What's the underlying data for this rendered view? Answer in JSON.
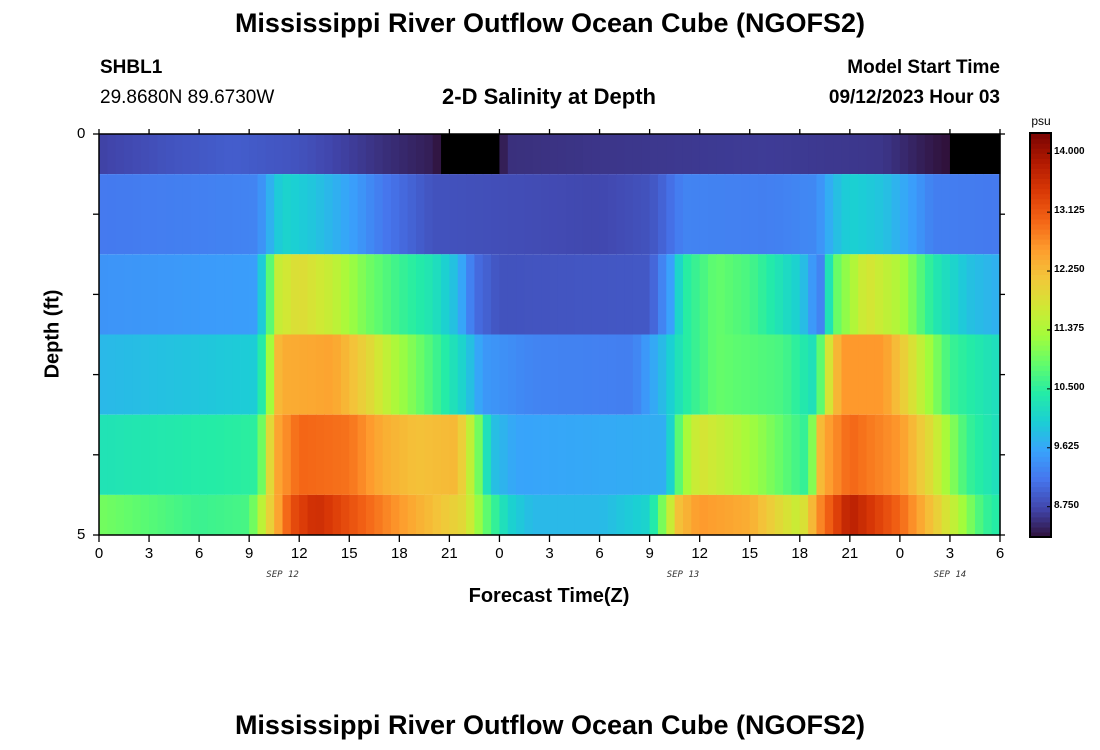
{
  "header": {
    "title": "Mississippi River Outflow Ocean Cube (NGOFS2)",
    "station_id": "SHBL1",
    "coordinates": "29.8680N  89.6730W",
    "plot_title": "2-D Salinity at Depth",
    "model_start_label": "Model Start Time",
    "model_start_value": "09/12/2023 Hour 03"
  },
  "footer": {
    "repeated_title": "Mississippi River Outflow Ocean Cube (NGOFS2)"
  },
  "colors": {
    "colormap": [
      "#30123b",
      "#4145ab",
      "#4675ed",
      "#39a2fc",
      "#1bcfd4",
      "#24eca6",
      "#61fc6c",
      "#a4fc3b",
      "#d1e834",
      "#f3c63a",
      "#fe9b2d",
      "#f36315",
      "#d93806",
      "#b11901",
      "#7a0402"
    ],
    "frame": "#000000"
  },
  "chart_data": {
    "type": "heatmap",
    "title": "2-D Salinity at Depth",
    "xlabel": "Forecast Time(Z)",
    "ylabel": "Depth (ft)",
    "x_tick_labels": [
      "0",
      "3",
      "6",
      "9",
      "12",
      "15",
      "18",
      "21",
      "0",
      "3",
      "6",
      "9",
      "12",
      "15",
      "18",
      "21",
      "0",
      "3",
      "6"
    ],
    "x_range_hours": [
      0,
      54
    ],
    "y_tick_labels": [
      "0",
      "5"
    ],
    "y_range": [
      0,
      5
    ],
    "date_labels": [
      {
        "text": "SEP 12",
        "hour": 11
      },
      {
        "text": "SEP 13",
        "hour": 35
      },
      {
        "text": "SEP 14",
        "hour": 51
      }
    ],
    "colorbar": {
      "unit": "psu",
      "min": 8.3,
      "max": 14.3,
      "tick_labels": [
        "14.000",
        "13.125",
        "12.250",
        "11.375",
        "10.500",
        "9.625",
        "8.750"
      ],
      "tick_values": [
        14.0,
        13.125,
        12.25,
        11.375,
        10.5,
        9.625,
        8.75
      ]
    },
    "layer_boundaries_ft": [
      0,
      0.5,
      1.5,
      2.5,
      3.5,
      4.5,
      5
    ],
    "layers": [
      {
        "name": "layer-1",
        "keyframes": [
          [
            0,
            8.7
          ],
          [
            4,
            8.85
          ],
          [
            8,
            8.95
          ],
          [
            12,
            8.85
          ],
          [
            17,
            8.55
          ],
          [
            20,
            8.4
          ],
          [
            22.2,
            7.8
          ],
          [
            22.7,
            7.2
          ],
          [
            23.2,
            7.8
          ],
          [
            24.5,
            8.55
          ],
          [
            30,
            8.6
          ],
          [
            40,
            8.65
          ],
          [
            47,
            8.6
          ],
          [
            50,
            8.35
          ],
          [
            54,
            8.1
          ]
        ]
      },
      {
        "name": "layer-2",
        "keyframes": [
          [
            0,
            9.2
          ],
          [
            9.5,
            9.3
          ],
          [
            10.2,
            9.7
          ],
          [
            11,
            10.1
          ],
          [
            13,
            9.9
          ],
          [
            15,
            9.6
          ],
          [
            17,
            9.2
          ],
          [
            20,
            8.85
          ],
          [
            30,
            8.75
          ],
          [
            33,
            8.85
          ],
          [
            34,
            9.05
          ],
          [
            35,
            9.3
          ],
          [
            40,
            9.25
          ],
          [
            43,
            9.35
          ],
          [
            44,
            9.8
          ],
          [
            45,
            10.05
          ],
          [
            47,
            9.9
          ],
          [
            49,
            9.5
          ],
          [
            50,
            9.25
          ],
          [
            54,
            9.2
          ]
        ]
      },
      {
        "name": "layer-3",
        "keyframes": [
          [
            0,
            9.45
          ],
          [
            9.5,
            9.55
          ],
          [
            10,
            10.4
          ],
          [
            10.7,
            11.6
          ],
          [
            12,
            11.9
          ],
          [
            14,
            11.6
          ],
          [
            16,
            11.0
          ],
          [
            18,
            10.6
          ],
          [
            20,
            10.3
          ],
          [
            21.5,
            9.8
          ],
          [
            22.5,
            9.1
          ],
          [
            24,
            8.85
          ],
          [
            33,
            8.9
          ],
          [
            34.3,
            9.6
          ],
          [
            35,
            10.4
          ],
          [
            37,
            10.9
          ],
          [
            39,
            10.7
          ],
          [
            42,
            10.0
          ],
          [
            43.2,
            9.2
          ],
          [
            44,
            10.8
          ],
          [
            46,
            11.8
          ],
          [
            48,
            11.4
          ],
          [
            50,
            10.4
          ],
          [
            52,
            9.9
          ],
          [
            54,
            9.7
          ]
        ]
      },
      {
        "name": "layer-4",
        "keyframes": [
          [
            0,
            9.8
          ],
          [
            9.5,
            10.0
          ],
          [
            10.2,
            11.2
          ],
          [
            10.8,
            12.4
          ],
          [
            14,
            12.5
          ],
          [
            16,
            12.0
          ],
          [
            18,
            11.3
          ],
          [
            20,
            10.7
          ],
          [
            22,
            10.0
          ],
          [
            23,
            9.5
          ],
          [
            26,
            9.3
          ],
          [
            32,
            9.25
          ],
          [
            34,
            9.9
          ],
          [
            35,
            10.4
          ],
          [
            37,
            10.9
          ],
          [
            41,
            10.7
          ],
          [
            43,
            10.2
          ],
          [
            43.5,
            11.5
          ],
          [
            44.5,
            12.6
          ],
          [
            47,
            12.6
          ],
          [
            49,
            11.7
          ],
          [
            51,
            10.6
          ],
          [
            54,
            10.2
          ]
        ]
      },
      {
        "name": "layer-5",
        "keyframes": [
          [
            0,
            10.3
          ],
          [
            9.5,
            10.5
          ],
          [
            10.5,
            12.4
          ],
          [
            12,
            13.0
          ],
          [
            15,
            12.9
          ],
          [
            17,
            12.4
          ],
          [
            19,
            12.2
          ],
          [
            21.5,
            12.3
          ],
          [
            22.6,
            11.2
          ],
          [
            23.5,
            9.9
          ],
          [
            25,
            9.6
          ],
          [
            34,
            9.7
          ],
          [
            35,
            11.2
          ],
          [
            36,
            11.8
          ],
          [
            38,
            11.5
          ],
          [
            40,
            11.1
          ],
          [
            42.5,
            10.5
          ],
          [
            43.3,
            12.4
          ],
          [
            45,
            13.0
          ],
          [
            48,
            12.6
          ],
          [
            50,
            11.8
          ],
          [
            52,
            10.6
          ],
          [
            54,
            10.2
          ]
        ]
      },
      {
        "name": "layer-6",
        "keyframes": [
          [
            0,
            11.0
          ],
          [
            3,
            10.8
          ],
          [
            6,
            10.6
          ],
          [
            9,
            10.7
          ],
          [
            10,
            11.8
          ],
          [
            11.5,
            13.2
          ],
          [
            13,
            13.6
          ],
          [
            16,
            13.0
          ],
          [
            19,
            12.4
          ],
          [
            22,
            11.9
          ],
          [
            23,
            11.0
          ],
          [
            24.5,
            10.1
          ],
          [
            26,
            9.8
          ],
          [
            30,
            9.8
          ],
          [
            33,
            10.1
          ],
          [
            34.7,
            12.2
          ],
          [
            36,
            12.6
          ],
          [
            39,
            12.4
          ],
          [
            42,
            11.6
          ],
          [
            43.3,
            12.8
          ],
          [
            45,
            13.8
          ],
          [
            48,
            13.0
          ],
          [
            51,
            11.7
          ],
          [
            53,
            10.6
          ],
          [
            54,
            10.4
          ]
        ]
      }
    ]
  }
}
